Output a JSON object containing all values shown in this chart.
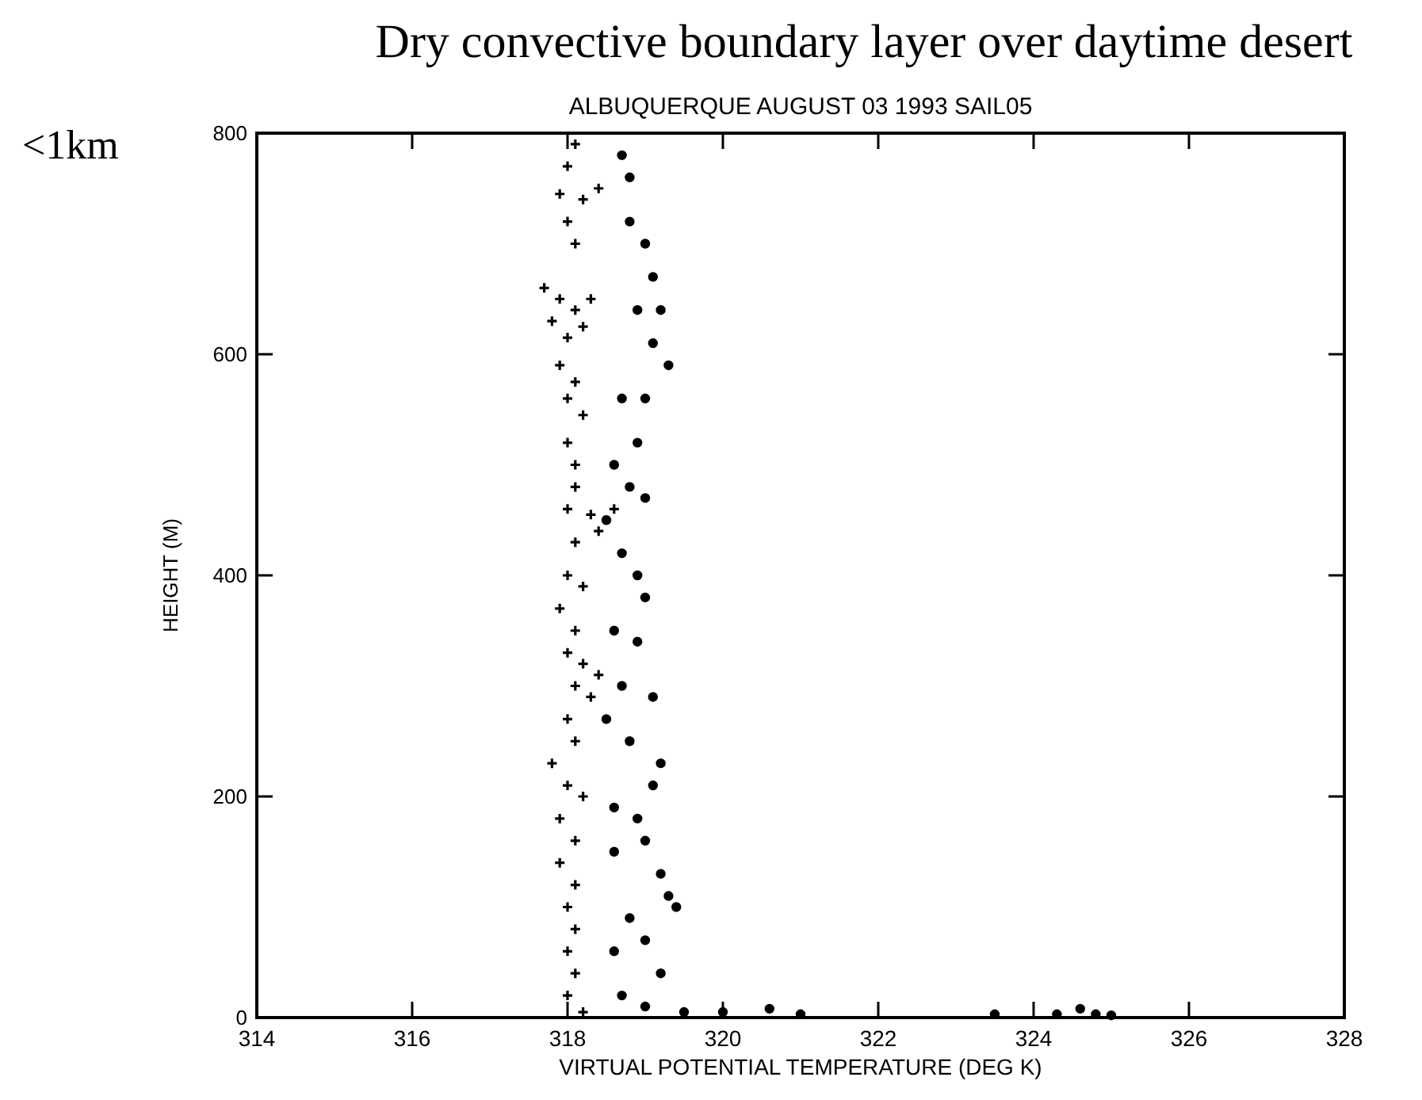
{
  "chart_data": {
    "type": "scatter",
    "title": "Dry convective boundary layer over daytime desert",
    "subtitle": "ALBUQUERQUE AUGUST 03 1993 SAIL05",
    "xlabel": "VIRTUAL POTENTIAL TEMPERATURE (DEG K)",
    "ylabel": "HEIGHT (M)",
    "annotations": [
      "<1km"
    ],
    "xlim": [
      314,
      328
    ],
    "xticks": [
      314,
      316,
      318,
      320,
      322,
      324,
      326,
      328
    ],
    "ylim": [
      0,
      800
    ],
    "yticks": [
      0,
      200,
      400,
      600,
      800
    ],
    "grid": false,
    "series": [
      {
        "color": "#000000",
        "marker": "cross",
        "x": [
          318.1,
          318.0,
          317.9,
          318.2,
          318.4,
          318.0,
          318.1,
          317.7,
          317.9,
          318.1,
          318.3,
          317.8,
          318.0,
          318.2,
          317.9,
          318.1,
          318.0,
          318.2,
          318.0,
          318.1,
          318.1,
          318.0,
          318.3,
          318.6,
          318.4,
          318.1,
          318.0,
          318.2,
          317.9,
          318.1,
          318.0,
          318.2,
          318.4,
          318.1,
          318.3,
          318.0,
          318.1,
          317.8,
          318.0,
          318.2,
          317.9,
          318.1,
          317.9,
          318.1,
          318.0,
          318.1,
          318.0,
          318.1,
          318.0,
          318.2
        ],
        "values": [
          790,
          770,
          745,
          740,
          750,
          720,
          700,
          660,
          650,
          640,
          650,
          630,
          615,
          625,
          590,
          575,
          560,
          545,
          520,
          500,
          480,
          460,
          455,
          460,
          440,
          430,
          400,
          390,
          370,
          350,
          330,
          320,
          310,
          300,
          290,
          270,
          250,
          230,
          210,
          200,
          180,
          160,
          140,
          120,
          100,
          80,
          60,
          40,
          20,
          5
        ]
      },
      {
        "color": "#000000",
        "marker": "circle",
        "x": [
          318.7,
          318.8,
          318.8,
          319.0,
          319.1,
          318.9,
          319.2,
          319.1,
          319.3,
          318.7,
          319.0,
          318.9,
          318.6,
          318.8,
          319.0,
          318.5,
          318.7,
          318.9,
          319.0,
          318.6,
          318.9,
          318.7,
          319.1,
          318.5,
          318.8,
          319.2,
          319.1,
          318.6,
          318.9,
          319.0,
          318.6,
          319.2,
          319.3,
          319.4,
          318.8,
          319.0,
          318.6,
          319.2,
          318.7,
          319.0,
          319.5,
          320.0,
          320.6,
          321.0,
          323.5,
          324.3,
          324.6,
          324.8,
          325.0
        ],
        "values": [
          780,
          760,
          720,
          700,
          670,
          640,
          640,
          610,
          590,
          560,
          560,
          520,
          500,
          480,
          470,
          450,
          420,
          400,
          380,
          350,
          340,
          300,
          290,
          270,
          250,
          230,
          210,
          190,
          180,
          160,
          150,
          130,
          110,
          100,
          90,
          70,
          60,
          40,
          20,
          10,
          5,
          5,
          8,
          3,
          3,
          3,
          8,
          3,
          2
        ]
      }
    ]
  }
}
